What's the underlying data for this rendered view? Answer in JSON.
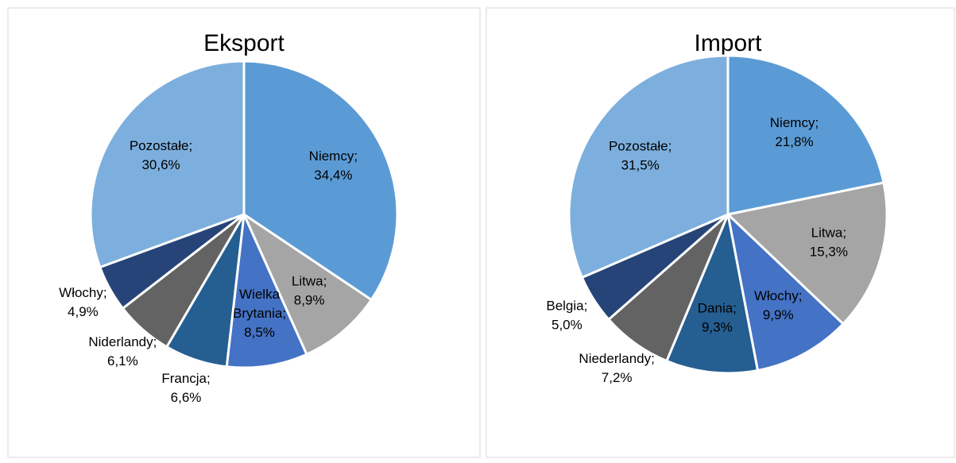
{
  "chart_data": [
    {
      "type": "pie",
      "title": "Eksport",
      "categories": [
        "Niemcy;",
        "Litwa;",
        "Wielka Brytania;",
        "Francja;",
        "Niderlandy;",
        "Włochy;",
        "Pozostałe;"
      ],
      "values": [
        34.4,
        8.9,
        8.5,
        6.6,
        6.1,
        4.9,
        30.6
      ],
      "value_labels": [
        "34,4%",
        "8,9%",
        "8,5%",
        "6,6%",
        "6,1%",
        "4,9%",
        "30,6%"
      ],
      "colors": [
        "#5b9bd5",
        "#a5a5a5",
        "#4472c4",
        "#255e91",
        "#636363",
        "#264478",
        "#7cafdd"
      ]
    },
    {
      "type": "pie",
      "title": "Import",
      "categories": [
        "Niemcy;",
        "Litwa;",
        "Włochy;",
        "Dania;",
        "Niederlandy;",
        "Belgia;",
        "Pozostałe;"
      ],
      "values": [
        21.8,
        15.3,
        9.9,
        9.3,
        7.2,
        5.0,
        31.5
      ],
      "value_labels": [
        "21,8%",
        "15,3%",
        "9,9%",
        "9,3%",
        "7,2%",
        "5,0%",
        "31,5%"
      ],
      "colors": [
        "#5b9bd5",
        "#a5a5a5",
        "#4472c4",
        "#255e91",
        "#636363",
        "#264478",
        "#7cafdd"
      ]
    }
  ]
}
